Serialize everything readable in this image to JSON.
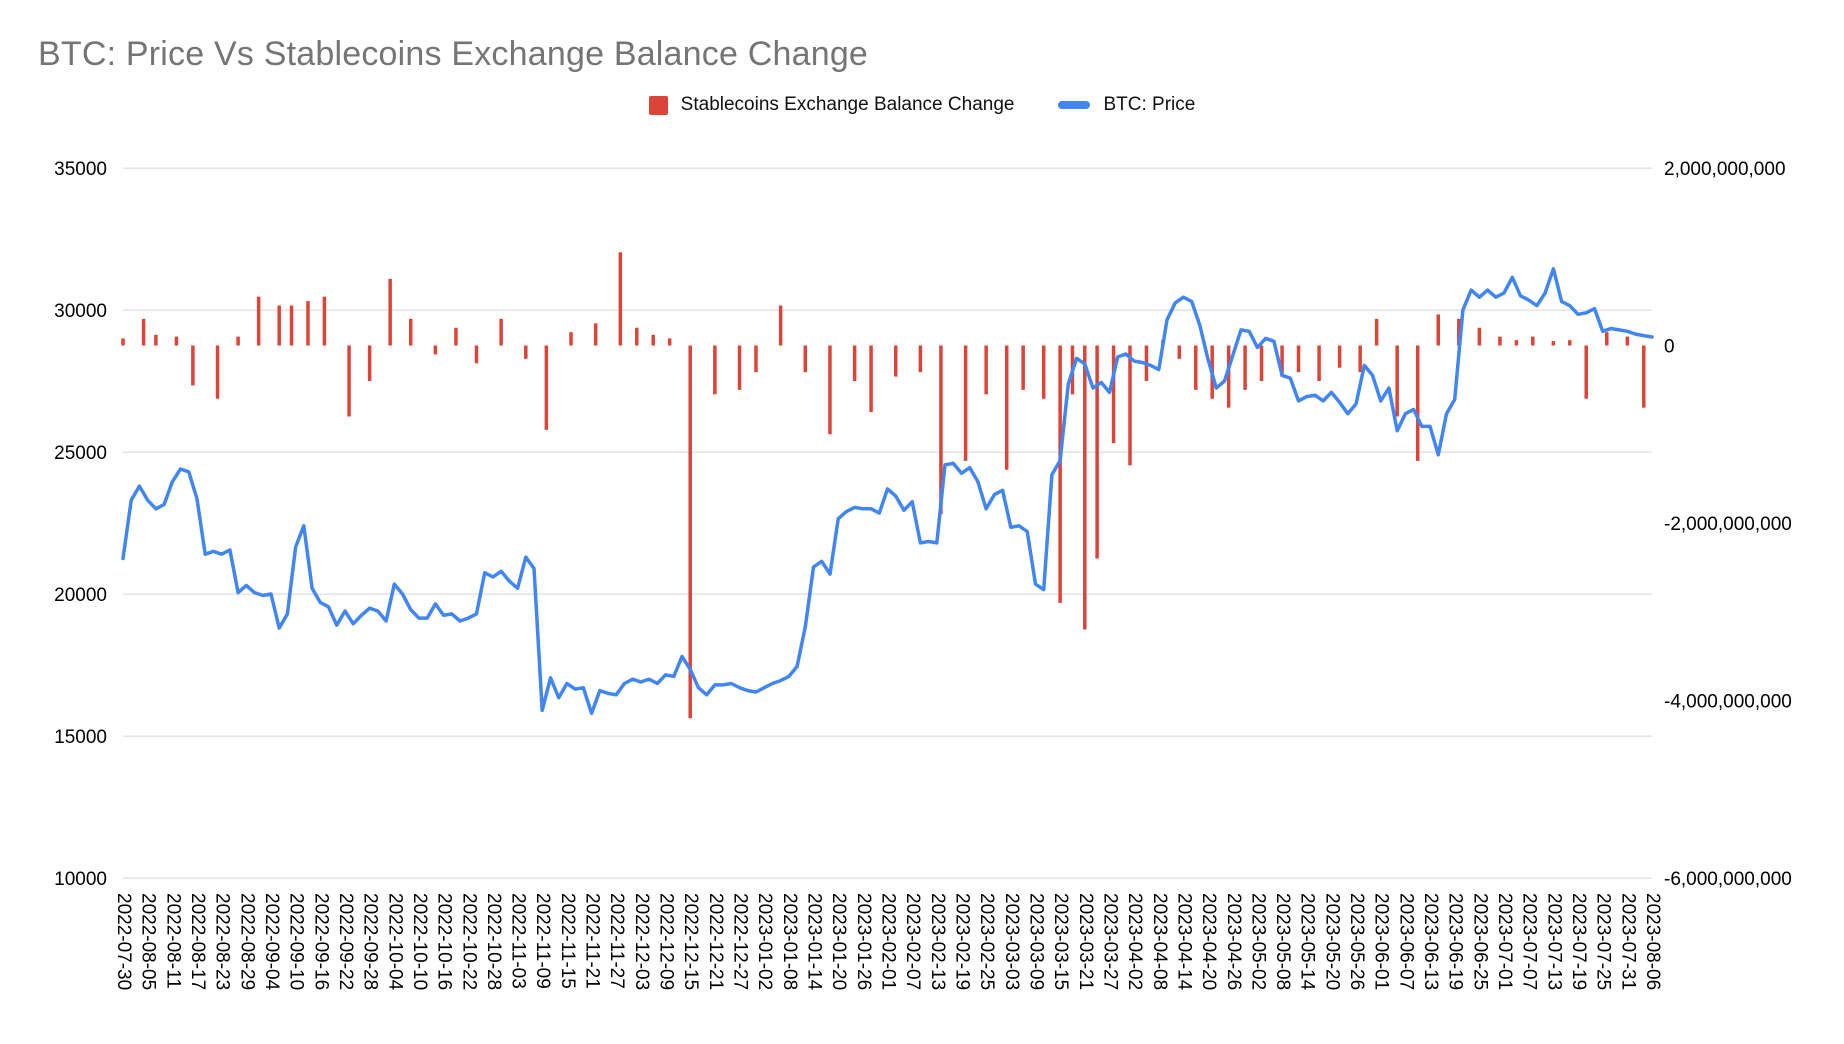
{
  "title": "BTC: Price Vs Stablecoins Exchange Balance Change",
  "legend": {
    "bars_label": "Stablecoins Exchange Balance Change",
    "line_label": "BTC: Price"
  },
  "colors": {
    "line": "#4285F4",
    "bars": "#DB4437",
    "grid": "#E3E3E3",
    "title": "#757575",
    "axis_text": "#000000"
  },
  "chart_data": {
    "type": "line+bar",
    "title": "BTC: Price Vs Stablecoins Exchange Balance Change",
    "legend_position": "top",
    "grid": "horizontal",
    "left_axis": {
      "series": "BTC: Price",
      "min": 10000,
      "max": 35000,
      "ticks": [
        35000,
        30000,
        25000,
        20000,
        15000,
        10000
      ]
    },
    "right_axis": {
      "series": "Stablecoins Exchange Balance Change",
      "min": -6000000000,
      "max": 2000000000,
      "ticks": [
        "2,000,000,000",
        "0",
        "-2,000,000,000",
        "-4,000,000,000",
        "-6,000,000,000"
      ]
    },
    "x_labels": [
      "2022-07-30",
      "2022-08-05",
      "2022-08-11",
      "2022-08-17",
      "2022-08-23",
      "2022-08-29",
      "2022-09-04",
      "2022-09-10",
      "2022-09-16",
      "2022-09-22",
      "2022-09-28",
      "2022-10-04",
      "2022-10-10",
      "2022-10-16",
      "2022-10-22",
      "2022-10-28",
      "2022-11-03",
      "2022-11-09",
      "2022-11-15",
      "2022-11-21",
      "2022-11-27",
      "2022-12-03",
      "2022-12-09",
      "2022-12-15",
      "2022-12-21",
      "2022-12-27",
      "2023-01-02",
      "2023-01-08",
      "2023-01-14",
      "2023-01-20",
      "2023-01-26",
      "2023-02-01",
      "2023-02-07",
      "2023-02-13",
      "2023-02-19",
      "2023-02-25",
      "2023-03-03",
      "2023-03-09",
      "2023-03-15",
      "2023-03-21",
      "2023-03-27",
      "2023-04-02",
      "2023-04-08",
      "2023-04-14",
      "2023-04-20",
      "2023-04-26",
      "2023-05-02",
      "2023-05-08",
      "2023-05-14",
      "2023-05-20",
      "2023-05-26",
      "2023-06-01",
      "2023-06-07",
      "2023-06-13",
      "2023-06-19",
      "2023-06-25",
      "2023-07-01",
      "2023-07-07",
      "2023-07-13",
      "2023-07-19",
      "2023-07-25",
      "2023-07-31",
      "2023-08-06"
    ],
    "price_series": {
      "name": "BTC: Price",
      "start": "2022-07-30",
      "step_days": 2,
      "values": [
        21250,
        23300,
        23800,
        23300,
        23000,
        23150,
        23950,
        24400,
        24300,
        23350,
        21400,
        21500,
        21400,
        21550,
        20050,
        20300,
        20050,
        19950,
        20000,
        18800,
        19300,
        21650,
        22400,
        20200,
        19700,
        19550,
        18900,
        19400,
        18950,
        19250,
        19500,
        19400,
        19050,
        20350,
        20000,
        19450,
        19150,
        19150,
        19650,
        19250,
        19300,
        19050,
        19150,
        19300,
        20750,
        20600,
        20800,
        20450,
        20200,
        21300,
        20900,
        15900,
        17050,
        16350,
        16850,
        16650,
        16700,
        15800,
        16600,
        16500,
        16450,
        16850,
        17000,
        16900,
        17000,
        16850,
        17150,
        17100,
        17800,
        17350,
        16700,
        16450,
        16800,
        16800,
        16850,
        16700,
        16600,
        16550,
        16700,
        16850,
        16950,
        17100,
        17450,
        18850,
        20950,
        21150,
        20700,
        22650,
        22900,
        23050,
        23000,
        23000,
        22850,
        23700,
        23450,
        22950,
        23250,
        21800,
        21850,
        21800,
        24550,
        24600,
        24250,
        24450,
        23950,
        23000,
        23500,
        23650,
        22350,
        22400,
        22200,
        20350,
        20150,
        24200,
        24700,
        27400,
        28300,
        28100,
        27250,
        27450,
        27100,
        28350,
        28450,
        28200,
        28150,
        28050,
        27900,
        29650,
        30250,
        30450,
        30300,
        29450,
        28250,
        27250,
        27500,
        28400,
        29300,
        29250,
        28680,
        29000,
        28900,
        27700,
        27600,
        26800,
        26950,
        27000,
        26800,
        27100,
        26750,
        26350,
        26700,
        28050,
        27700,
        26800,
        27250,
        25750,
        26350,
        26500,
        25900,
        25900,
        24900,
        26350,
        26850,
        30000,
        30700,
        30450,
        30700,
        30450,
        30600,
        31150,
        30500,
        30350,
        30150,
        30600,
        31450,
        30300,
        30150,
        29850,
        29900,
        30050,
        29250,
        29350,
        29300,
        29250,
        29150,
        29100,
        29050
      ]
    },
    "balance_bars": {
      "name": "Stablecoins Exchange Balance Change",
      "points": [
        [
          "2022-07-30",
          80000000
        ],
        [
          "2022-08-04",
          300000000
        ],
        [
          "2022-08-07",
          120000000
        ],
        [
          "2022-08-12",
          100000000
        ],
        [
          "2022-08-16",
          -450000000
        ],
        [
          "2022-08-22",
          -600000000
        ],
        [
          "2022-08-27",
          100000000
        ],
        [
          "2022-09-01",
          550000000
        ],
        [
          "2022-09-06",
          450000000
        ],
        [
          "2022-09-09",
          450000000
        ],
        [
          "2022-09-13",
          500000000
        ],
        [
          "2022-09-17",
          550000000
        ],
        [
          "2022-09-23",
          -800000000
        ],
        [
          "2022-09-28",
          -400000000
        ],
        [
          "2022-10-03",
          750000000
        ],
        [
          "2022-10-08",
          300000000
        ],
        [
          "2022-10-14",
          -100000000
        ],
        [
          "2022-10-19",
          200000000
        ],
        [
          "2022-10-24",
          -200000000
        ],
        [
          "2022-10-30",
          300000000
        ],
        [
          "2022-11-05",
          -150000000
        ],
        [
          "2022-11-10",
          -950000000
        ],
        [
          "2022-11-16",
          150000000
        ],
        [
          "2022-11-22",
          250000000
        ],
        [
          "2022-11-28",
          1050000000
        ],
        [
          "2022-12-02",
          200000000
        ],
        [
          "2022-12-06",
          120000000
        ],
        [
          "2022-12-10",
          80000000
        ],
        [
          "2022-12-15",
          -4200000000
        ],
        [
          "2022-12-21",
          -550000000
        ],
        [
          "2022-12-27",
          -500000000
        ],
        [
          "2022-12-31",
          -300000000
        ],
        [
          "2023-01-06",
          450000000
        ],
        [
          "2023-01-12",
          -300000000
        ],
        [
          "2023-01-18",
          -1000000000
        ],
        [
          "2023-01-24",
          -400000000
        ],
        [
          "2023-01-28",
          -750000000
        ],
        [
          "2023-02-03",
          -350000000
        ],
        [
          "2023-02-09",
          -300000000
        ],
        [
          "2023-02-14",
          -1900000000
        ],
        [
          "2023-02-20",
          -1300000000
        ],
        [
          "2023-02-25",
          -550000000
        ],
        [
          "2023-03-02",
          -1400000000
        ],
        [
          "2023-03-06",
          -500000000
        ],
        [
          "2023-03-11",
          -600000000
        ],
        [
          "2023-03-15",
          -2900000000
        ],
        [
          "2023-03-18",
          -550000000
        ],
        [
          "2023-03-21",
          -3200000000
        ],
        [
          "2023-03-24",
          -2400000000
        ],
        [
          "2023-03-28",
          -1100000000
        ],
        [
          "2023-04-01",
          -1350000000
        ],
        [
          "2023-04-05",
          -400000000
        ],
        [
          "2023-04-09",
          60000000
        ],
        [
          "2023-04-13",
          -150000000
        ],
        [
          "2023-04-17",
          -500000000
        ],
        [
          "2023-04-21",
          -600000000
        ],
        [
          "2023-04-25",
          -700000000
        ],
        [
          "2023-04-29",
          -500000000
        ],
        [
          "2023-05-03",
          -400000000
        ],
        [
          "2023-05-08",
          -350000000
        ],
        [
          "2023-05-12",
          -300000000
        ],
        [
          "2023-05-17",
          -400000000
        ],
        [
          "2023-05-22",
          -250000000
        ],
        [
          "2023-05-27",
          -300000000
        ],
        [
          "2023-05-31",
          300000000
        ],
        [
          "2023-06-05",
          -800000000
        ],
        [
          "2023-06-10",
          -1300000000
        ],
        [
          "2023-06-15",
          350000000
        ],
        [
          "2023-06-20",
          300000000
        ],
        [
          "2023-06-25",
          200000000
        ],
        [
          "2023-06-30",
          100000000
        ],
        [
          "2023-07-04",
          60000000
        ],
        [
          "2023-07-08",
          100000000
        ],
        [
          "2023-07-13",
          50000000
        ],
        [
          "2023-07-17",
          60000000
        ],
        [
          "2023-07-21",
          -600000000
        ],
        [
          "2023-07-26",
          150000000
        ],
        [
          "2023-07-31",
          100000000
        ],
        [
          "2023-08-04",
          -700000000
        ]
      ]
    }
  }
}
